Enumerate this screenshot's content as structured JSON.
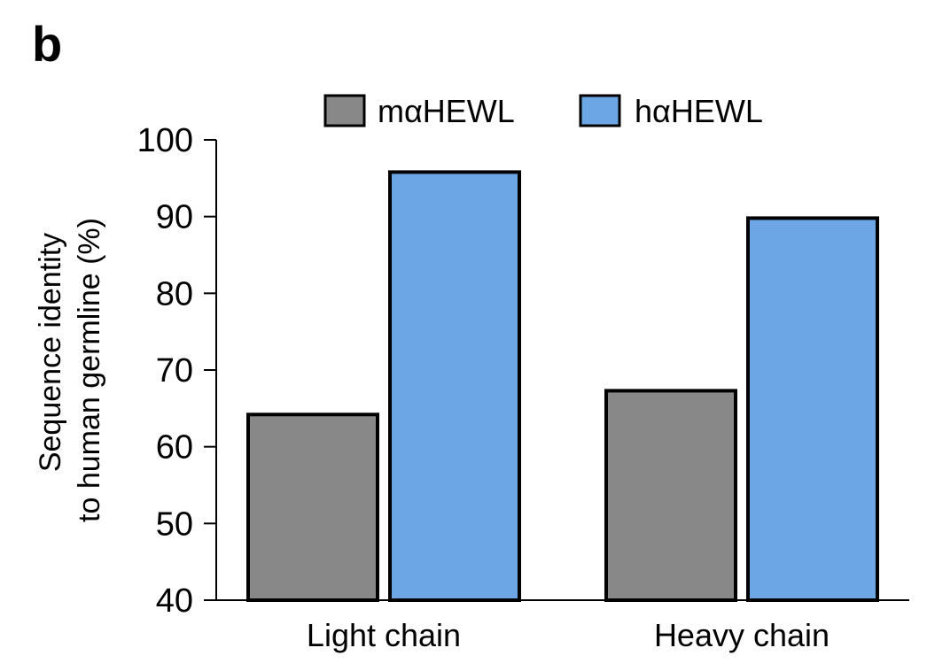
{
  "panel_label": "b",
  "chart_data": {
    "type": "bar",
    "categories": [
      "Light chain",
      "Heavy chain"
    ],
    "series": [
      {
        "name": "mαHEWL",
        "values": [
          64.2,
          67.3
        ],
        "color": "#888888"
      },
      {
        "name": "hαHEWL",
        "values": [
          95.8,
          89.8
        ],
        "color": "#6CA6E4"
      }
    ],
    "ylabel_lines": [
      "Sequence identity",
      "to human germline (%)"
    ],
    "xlabel": "",
    "ylim": [
      40,
      100
    ],
    "yticks": [
      40,
      50,
      60,
      70,
      80,
      90,
      100
    ],
    "grid": false,
    "legend_position": "top"
  }
}
